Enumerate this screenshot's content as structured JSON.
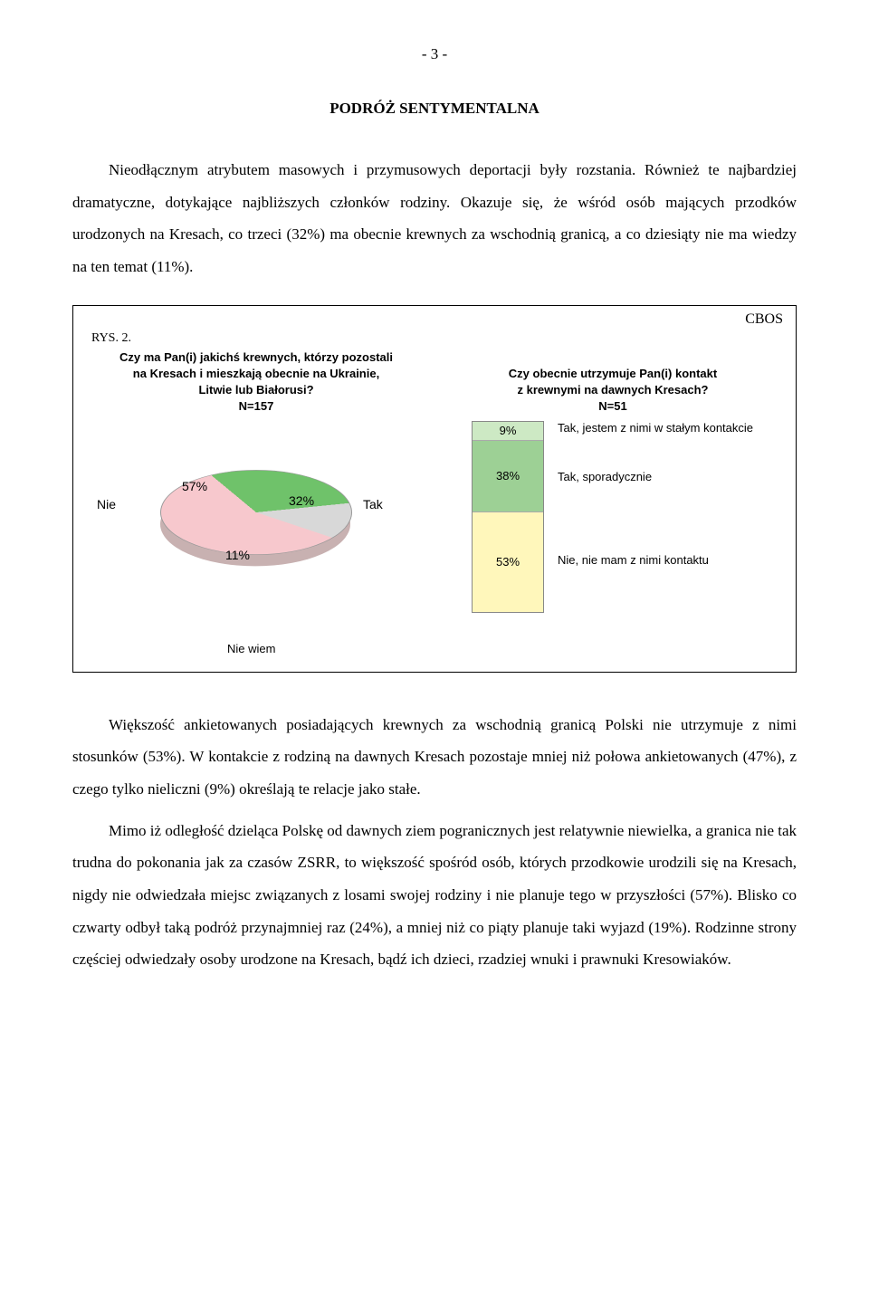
{
  "page_num": "- 3 -",
  "heading": "PODRÓŻ SENTYMENTALNA",
  "para1": "Nieodłącznym atrybutem masowych i przymusowych deportacji były rozstania. Również te najbardziej dramatyczne, dotykające najbliższych członków rodziny. Okazuje się, że wśród osób mających przodków urodzonych na Kresach, co trzeci (32%) ma obecnie krewnych za wschodnią granicą, a co dziesiąty nie ma wiedzy na ten temat (11%).",
  "chart": {
    "cbos": "CBOS",
    "rys": "RYS. 2.",
    "q_left_line1": "Czy ma Pan(i) jakichś krewnych, którzy pozostali",
    "q_left_line2": "na Kresach i mieszkają obecnie na Ukrainie,",
    "q_left_line3": "Litwie lub Białorusi?",
    "q_left_n": "N=157",
    "q_right_line1": "Czy obecnie utrzymuje Pan(i) kontakt",
    "q_right_line2": "z krewnymi na dawnych Kresach?",
    "q_right_n": "N=51",
    "pie": {
      "nie_label": "Nie",
      "nie_pct": "57%",
      "tak_label": "Tak",
      "tak_pct": "32%",
      "nw_pct": "11%",
      "nw_label": "Nie wiem",
      "color_nie": "#f7c8cd",
      "color_tak": "#6fc26a",
      "color_nw": "#d8d8d8"
    },
    "bar": {
      "seg1_pct": "9%",
      "seg1_label": "Tak, jestem z nimi w stałym kontakcie",
      "seg1_color": "#cde9c4",
      "seg2_pct": "38%",
      "seg2_label": "Tak, sporadycznie",
      "seg2_color": "#9dd095",
      "seg3_pct": "53%",
      "seg3_label": "Nie, nie mam z nimi kontaktu",
      "seg3_color": "#fff7bb",
      "h1": 21,
      "h2": 79,
      "h3": 110
    }
  },
  "para2": "Większość ankietowanych posiadających krewnych za wschodnią granicą Polski nie utrzymuje z nimi stosunków (53%). W kontakcie z rodziną na dawnych Kresach pozostaje mniej niż połowa ankietowanych (47%), z czego tylko nieliczni (9%) określają te relacje jako stałe.",
  "para3": "Mimo iż odległość dzieląca Polskę od dawnych ziem pogranicznych jest relatywnie niewielka, a granica nie tak trudna do pokonania jak za czasów ZSRR, to większość spośród osób, których przodkowie urodzili się na Kresach, nigdy nie odwiedzała miejsc związanych z losami swojej rodziny i nie planuje tego w przyszłości (57%). Blisko co czwarty odbył taką podróż przynajmniej raz (24%), a mniej niż co piąty planuje taki wyjazd (19%). Rodzinne strony częściej odwiedzały osoby urodzone na Kresach, bądź ich dzieci, rzadziej wnuki i prawnuki Kresowiaków."
}
